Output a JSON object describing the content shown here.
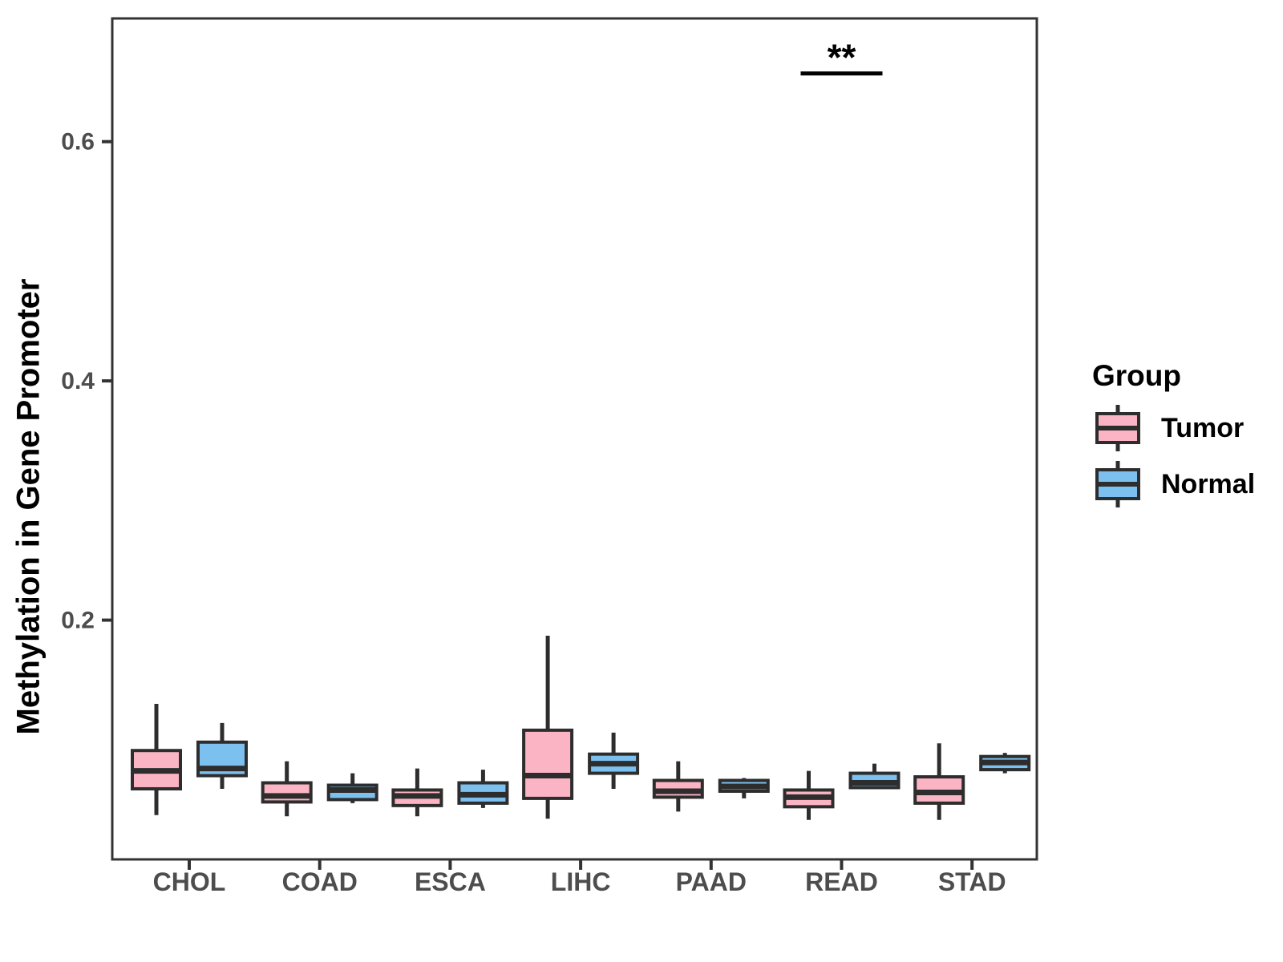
{
  "figure": {
    "background": "#FFFFFF"
  },
  "colors": {
    "tumor_fill": "#FBB4C4",
    "normal_fill": "#7CC0F0",
    "box_stroke": "#2D2D2D",
    "panel_border": "#333333",
    "axis_text": "#4D4D4D",
    "title_text": "#000000"
  },
  "legend": {
    "title": "Group",
    "entries": [
      {
        "label": "Tumor",
        "color": "#FBB4C4"
      },
      {
        "label": "Normal",
        "color": "#7CC0F0"
      }
    ]
  },
  "chart_data": {
    "type": "boxplot",
    "title": "",
    "xlabel": "",
    "ylabel": "Methylation in Gene Promoter",
    "ylim": [
      0,
      0.703
    ],
    "yticks": [
      {
        "value": 0.2,
        "label": "0.2"
      },
      {
        "value": 0.4,
        "label": "0.4"
      },
      {
        "value": 0.6,
        "label": "0.6"
      }
    ],
    "grid": false,
    "legend_position": "right",
    "categories": [
      "CHOL",
      "COAD",
      "ESCA",
      "LIHC",
      "PAAD",
      "READ",
      "STAD"
    ],
    "series": [
      {
        "name": "Tumor",
        "color": "#FBB4C4",
        "boxes": [
          {
            "whisker_low": 0.037,
            "q1": 0.059,
            "median": 0.074,
            "q3": 0.091,
            "whisker_high": 0.13
          },
          {
            "whisker_low": 0.036,
            "q1": 0.048,
            "median": 0.053,
            "q3": 0.064,
            "whisker_high": 0.082
          },
          {
            "whisker_low": 0.036,
            "q1": 0.045,
            "median": 0.053,
            "q3": 0.058,
            "whisker_high": 0.076
          },
          {
            "whisker_low": 0.034,
            "q1": 0.051,
            "median": 0.07,
            "q3": 0.108,
            "whisker_high": 0.187
          },
          {
            "whisker_low": 0.04,
            "q1": 0.052,
            "median": 0.057,
            "q3": 0.066,
            "whisker_high": 0.082
          },
          {
            "whisker_low": 0.033,
            "q1": 0.044,
            "median": 0.052,
            "q3": 0.058,
            "whisker_high": 0.074
          },
          {
            "whisker_low": 0.033,
            "q1": 0.047,
            "median": 0.056,
            "q3": 0.069,
            "whisker_high": 0.097
          }
        ]
      },
      {
        "name": "Normal",
        "color": "#7CC0F0",
        "boxes": [
          {
            "whisker_low": 0.059,
            "q1": 0.07,
            "median": 0.076,
            "q3": 0.098,
            "whisker_high": 0.114
          },
          {
            "whisker_low": 0.047,
            "q1": 0.05,
            "median": 0.058,
            "q3": 0.062,
            "whisker_high": 0.072
          },
          {
            "whisker_low": 0.043,
            "q1": 0.047,
            "median": 0.054,
            "q3": 0.064,
            "whisker_high": 0.075
          },
          {
            "whisker_low": 0.059,
            "q1": 0.072,
            "median": 0.08,
            "q3": 0.088,
            "whisker_high": 0.106
          },
          {
            "whisker_low": 0.051,
            "q1": 0.057,
            "median": 0.061,
            "q3": 0.066,
            "whisker_high": 0.068
          },
          {
            "whisker_low": 0.059,
            "q1": 0.06,
            "median": 0.064,
            "q3": 0.072,
            "whisker_high": 0.08
          },
          {
            "whisker_low": 0.072,
            "q1": 0.075,
            "median": 0.081,
            "q3": 0.086,
            "whisker_high": 0.089
          }
        ]
      }
    ],
    "significance": {
      "category": "READ",
      "label": "**",
      "bar_y": 0.657
    }
  }
}
